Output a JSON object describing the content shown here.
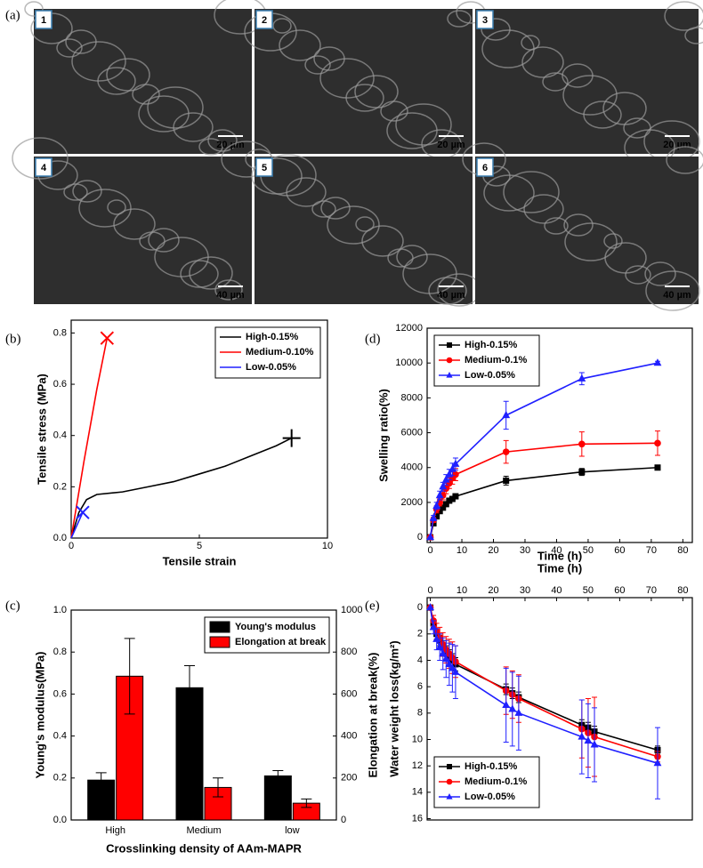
{
  "sem_panel": {
    "label": "(a)",
    "images": [
      {
        "number": "1",
        "scale": "20 µm"
      },
      {
        "number": "2",
        "scale": "20 µm"
      },
      {
        "number": "3",
        "scale": "20 µm"
      },
      {
        "number": "4",
        "scale": "40 µm"
      },
      {
        "number": "5",
        "scale": "40 µm"
      },
      {
        "number": "6",
        "scale": "40 µm"
      }
    ]
  },
  "chart_data": [
    {
      "panel_label": "(b)",
      "type": "line",
      "xlabel": "Tensile strain",
      "ylabel": "Tensile stress (MPa)",
      "xlim": [
        0,
        10
      ],
      "xticks": [
        0,
        5,
        10
      ],
      "ylim": [
        0,
        0.85
      ],
      "yticks": [
        {
          "value": 0,
          "label": "0.0"
        },
        0.2,
        0.4,
        0.6,
        0.8
      ],
      "legend": "upper-right",
      "series": [
        {
          "name": "High-0.15%",
          "color": "#000000",
          "end_marker": "plus",
          "x": [
            0,
            0.3,
            0.6,
            1,
            2,
            3,
            4,
            5,
            6,
            7,
            8,
            8.6
          ],
          "values": [
            0,
            0.1,
            0.15,
            0.17,
            0.18,
            0.2,
            0.22,
            0.25,
            0.28,
            0.32,
            0.36,
            0.39
          ]
        },
        {
          "name": "Medium-0.10%",
          "color": "#ff0000",
          "end_marker": "x",
          "x": [
            0,
            0.5,
            1,
            1.4
          ],
          "values": [
            0,
            0.3,
            0.58,
            0.78
          ]
        },
        {
          "name": "Low-0.05%",
          "color": "#2020ff",
          "end_marker": "x",
          "x": [
            0,
            0.45
          ],
          "values": [
            0,
            0.1
          ]
        }
      ]
    },
    {
      "panel_label": "(d)",
      "type": "line",
      "xlabel": "Time (h)",
      "ylabel": "Swelling ratio(%)",
      "xlim": [
        -1,
        83
      ],
      "xticks": [
        0,
        10,
        20,
        30,
        40,
        50,
        60,
        70,
        80
      ],
      "ylim": [
        -300,
        12000
      ],
      "yticks": [
        0,
        2000,
        4000,
        6000,
        8000,
        10000,
        12000
      ],
      "legend": "upper-left",
      "x": [
        0,
        1,
        2,
        3,
        4,
        5,
        6,
        7,
        8,
        24,
        48,
        72
      ],
      "series": [
        {
          "name": "High-0.15%",
          "color": "#000000",
          "marker": "square",
          "values": [
            0,
            800,
            1200,
            1500,
            1700,
            1900,
            2100,
            2200,
            2350,
            3250,
            3750,
            4000
          ],
          "errors": [
            0,
            100,
            100,
            100,
            100,
            100,
            150,
            150,
            150,
            250,
            200,
            100
          ]
        },
        {
          "name": "Medium-0.1%",
          "color": "#ff0000",
          "marker": "circle",
          "values": [
            0,
            1000,
            1600,
            2000,
            2400,
            2800,
            3100,
            3400,
            3600,
            4900,
            5350,
            5400
          ],
          "errors": [
            0,
            150,
            200,
            200,
            250,
            300,
            300,
            350,
            350,
            650,
            700,
            700
          ]
        },
        {
          "name": "Low-0.05%",
          "color": "#2020ff",
          "marker": "triangle",
          "values": [
            0,
            1100,
            1800,
            2400,
            2900,
            3300,
            3600,
            3900,
            4200,
            7000,
            9100,
            10000
          ],
          "errors": [
            0,
            150,
            200,
            250,
            250,
            300,
            300,
            350,
            350,
            800,
            350,
            100
          ]
        }
      ]
    },
    {
      "panel_label": "(c)",
      "type": "bar",
      "xlabel": "Crosslinking density of AAm-MAPR",
      "ylabel": "Young's modulus(MPa)",
      "y2label": "Elongation at break(%)",
      "categories": [
        "High",
        "Medium",
        "low"
      ],
      "ylim": [
        0,
        1
      ],
      "yticks": [
        {
          "value": 0,
          "label": "0.0"
        },
        0.2,
        0.4,
        0.6,
        0.8,
        {
          "value": 1,
          "label": "1.0"
        }
      ],
      "y2lim": [
        0,
        1000
      ],
      "y2ticks": [
        0,
        200,
        400,
        600,
        800,
        1000
      ],
      "legend": "upper-right",
      "series": [
        {
          "name": "Young's modulus",
          "color": "#000000",
          "values": [
            0.19,
            0.63,
            0.21
          ],
          "errors": [
            0.035,
            0.105,
            0.025
          ]
        },
        {
          "name": "Elongation at break",
          "color": "#ff0000",
          "axis": "y2",
          "values": [
            685,
            155,
            80
          ],
          "errors": [
            180,
            45,
            20
          ]
        }
      ]
    },
    {
      "panel_label": "(e)",
      "type": "line",
      "xlabel": "Time (h)",
      "ylabel": "Water weight loss(kg/m²)",
      "xaxis_position": "top",
      "y_reversed": true,
      "xlim": [
        -1,
        83
      ],
      "xticks": [
        0,
        10,
        20,
        30,
        40,
        50,
        60,
        70,
        80
      ],
      "ylim": [
        -0.75,
        16.1
      ],
      "yticks": [
        0,
        2,
        4,
        6,
        8,
        10,
        12,
        14,
        16
      ],
      "legend": "lower-left",
      "x": [
        0,
        1,
        2,
        3,
        4,
        5,
        6,
        7,
        8,
        24,
        26,
        28,
        48,
        50,
        52,
        72
      ],
      "series": [
        {
          "name": "High-0.15%",
          "color": "#000000",
          "marker": "square",
          "values": [
            0,
            1.2,
            2,
            2.5,
            3,
            3.4,
            3.7,
            4,
            4.3,
            6.2,
            6.5,
            6.8,
            8.9,
            9.1,
            9.4,
            10.8
          ],
          "errors": [
            0,
            0.3,
            0.4,
            0.4,
            0.5,
            0.5,
            0.5,
            0.5,
            0.5,
            0.4,
            0.4,
            0.4,
            0.4,
            0.4,
            0.4,
            0.3
          ]
        },
        {
          "name": "Medium-0.1%",
          "color": "#ff0000",
          "marker": "circle",
          "values": [
            0,
            1,
            1.8,
            2.3,
            2.8,
            3.2,
            3.5,
            3.8,
            4.1,
            6.3,
            6.6,
            6.9,
            9.2,
            9.5,
            9.8,
            11.3
          ],
          "errors": [
            0,
            0.4,
            0.6,
            0.8,
            0.9,
            1,
            1.1,
            1.2,
            1.2,
            1.8,
            1.8,
            1.8,
            2.2,
            2.6,
            3,
            0.4
          ]
        },
        {
          "name": "Low-0.05%",
          "color": "#2020ff",
          "marker": "triangle",
          "values": [
            0,
            1.5,
            2.4,
            3,
            3.5,
            3.9,
            4.3,
            4.6,
            4.9,
            7.4,
            7.7,
            8,
            9.8,
            10.1,
            10.4,
            11.8
          ],
          "errors": [
            0,
            0.5,
            0.8,
            1,
            1.2,
            1.4,
            1.6,
            1.8,
            2,
            2.8,
            2.8,
            2.8,
            2.8,
            2.8,
            2.8,
            2.7
          ]
        }
      ]
    }
  ]
}
